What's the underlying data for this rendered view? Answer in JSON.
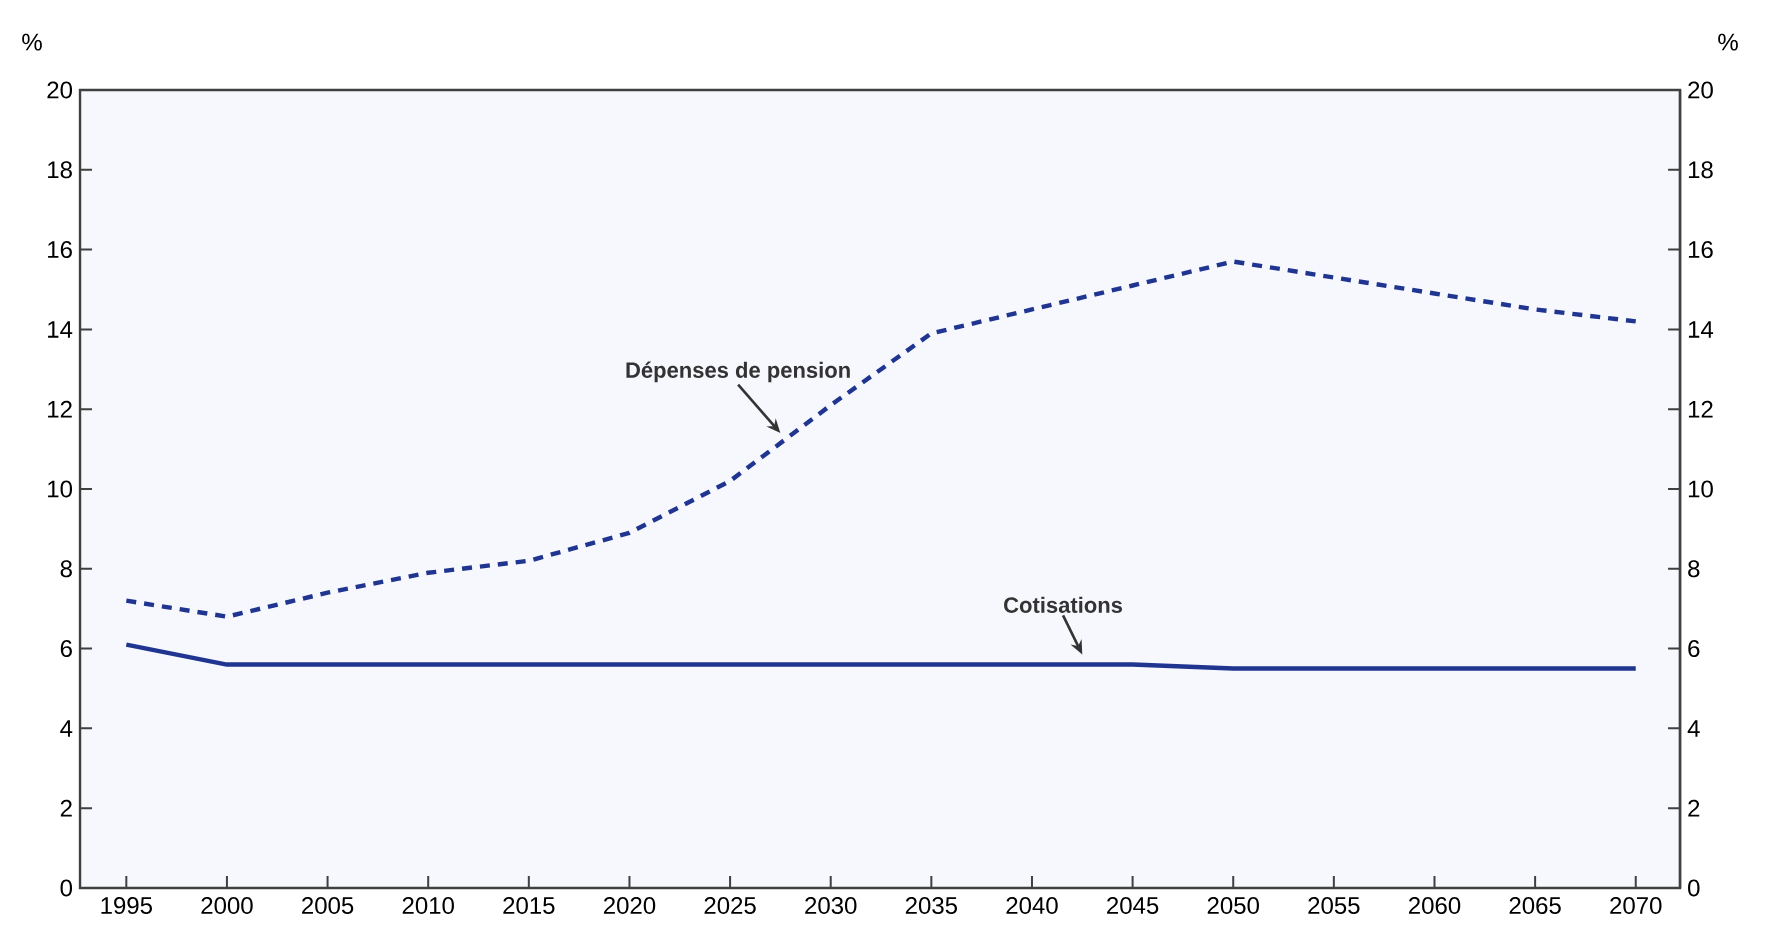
{
  "chart_data": {
    "type": "line",
    "ylabel": "%",
    "y2label": "%",
    "x": [
      1995,
      2000,
      2005,
      2010,
      2015,
      2020,
      2025,
      2030,
      2035,
      2040,
      2045,
      2050,
      2055,
      2060,
      2065,
      2070
    ],
    "series": [
      {
        "name": "Dépenses de pension",
        "color": "#1f3590",
        "line_style": "dashed",
        "values": [
          7.2,
          6.8,
          7.4,
          7.9,
          8.2,
          8.9,
          10.2,
          12.1,
          13.9,
          14.5,
          15.1,
          15.7,
          15.3,
          14.9,
          14.5,
          14.2
        ]
      },
      {
        "name": "Cotisations",
        "color": "#1f3590",
        "line_style": "solid",
        "values": [
          6.1,
          5.6,
          5.6,
          5.6,
          5.6,
          5.6,
          5.6,
          5.6,
          5.6,
          5.6,
          5.6,
          5.5,
          5.5,
          5.5,
          5.5,
          5.5
        ]
      }
    ],
    "xlim": [
      1992.7,
      2072.2
    ],
    "xticks": [
      1995,
      2000,
      2005,
      2010,
      2015,
      2020,
      2025,
      2030,
      2035,
      2040,
      2045,
      2050,
      2055,
      2060,
      2065,
      2070
    ],
    "ylim": [
      0,
      20
    ],
    "yticks": [
      0,
      2,
      4,
      6,
      8,
      10,
      12,
      14,
      16,
      18,
      20
    ],
    "y2lim": [
      0,
      20
    ],
    "y2ticks": [
      0,
      2,
      4,
      6,
      8,
      10,
      12,
      14,
      16,
      18,
      20
    ],
    "grid": false,
    "legend": false,
    "marker": "none"
  }
}
